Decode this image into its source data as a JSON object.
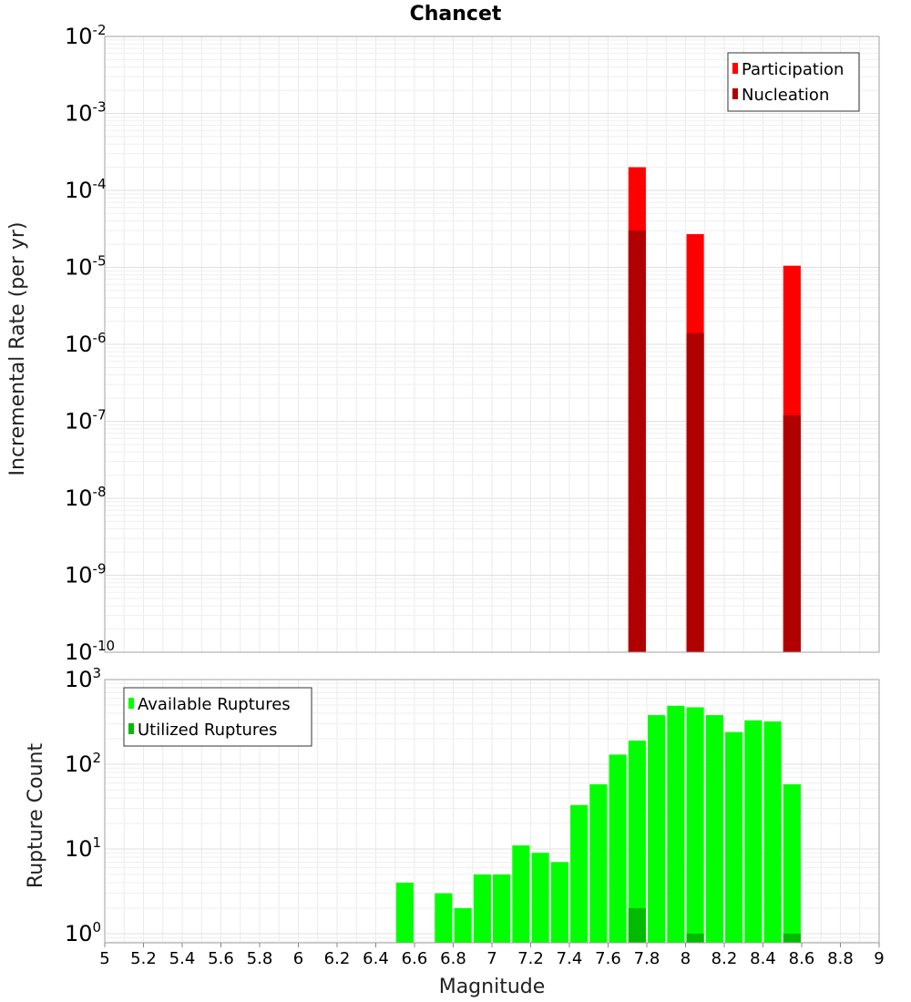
{
  "chart_data": [
    {
      "type": "bar",
      "title": "Chancet",
      "xlabel": "",
      "ylabel": "Incremental Rate (per yr)",
      "yscale": "log",
      "xlim": [
        5,
        9
      ],
      "ylim": [
        1e-10,
        0.01
      ],
      "ytick_labels": [
        "10^-10",
        "10^-9",
        "10^-8",
        "10^-7",
        "10^-6",
        "10^-5",
        "10^-4",
        "10^-3",
        "10^-2"
      ],
      "grid": true,
      "legend_position": "top-right",
      "bar_width": 0.09,
      "series": [
        {
          "name": "Participation",
          "color": "#ff0000",
          "points": [
            [
              7.75,
              0.0002
            ],
            [
              8.05,
              2.7e-05
            ],
            [
              8.55,
              1.05e-05
            ]
          ]
        },
        {
          "name": "Nucleation",
          "color": "#b00000",
          "points": [
            [
              7.75,
              3e-05
            ],
            [
              8.05,
              1.4e-06
            ],
            [
              8.55,
              1.2e-07
            ]
          ]
        }
      ]
    },
    {
      "type": "bar",
      "title": "",
      "xlabel": "Magnitude",
      "ylabel": "Rupture Count",
      "yscale": "log",
      "xlim": [
        5,
        9
      ],
      "ylim": [
        0.78,
        1000
      ],
      "ytick_labels": [
        "10^0",
        "10^1",
        "10^2",
        "10^3"
      ],
      "xtick_labels": [
        "5",
        "5.2",
        "5.4",
        "5.6",
        "5.8",
        "6",
        "6.2",
        "6.4",
        "6.6",
        "6.8",
        "7",
        "7.2",
        "7.4",
        "7.6",
        "7.8",
        "8",
        "8.2",
        "8.4",
        "8.6",
        "8.8",
        "9"
      ],
      "grid": true,
      "legend_position": "top-left",
      "bar_width": 0.09,
      "series": [
        {
          "name": "Available Ruptures",
          "color": "#00ff00",
          "points": [
            [
              6.55,
              4
            ],
            [
              6.75,
              3
            ],
            [
              6.85,
              2
            ],
            [
              6.95,
              5
            ],
            [
              7.05,
              5
            ],
            [
              7.15,
              11
            ],
            [
              7.25,
              9
            ],
            [
              7.35,
              7
            ],
            [
              7.45,
              33
            ],
            [
              7.55,
              58
            ],
            [
              7.65,
              130
            ],
            [
              7.75,
              190
            ],
            [
              7.85,
              380
            ],
            [
              7.95,
              490
            ],
            [
              8.05,
              470
            ],
            [
              8.15,
              380
            ],
            [
              8.25,
              240
            ],
            [
              8.35,
              330
            ],
            [
              8.45,
              320
            ],
            [
              8.55,
              58
            ]
          ]
        },
        {
          "name": "Utilized Ruptures",
          "color": "#00bb00",
          "points": [
            [
              7.75,
              2
            ],
            [
              8.05,
              1
            ],
            [
              8.55,
              1
            ]
          ]
        }
      ]
    }
  ]
}
